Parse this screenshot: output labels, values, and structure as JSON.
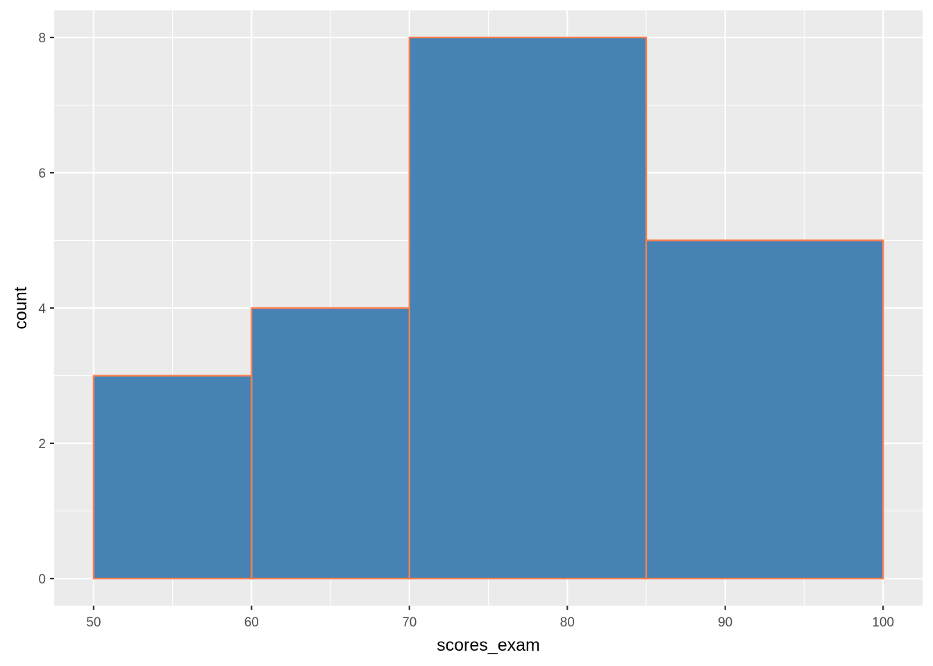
{
  "chart_data": {
    "type": "bar",
    "subtype": "histogram",
    "bins": [
      {
        "start": 50,
        "end": 60,
        "count": 3
      },
      {
        "start": 60,
        "end": 70,
        "count": 4
      },
      {
        "start": 70,
        "end": 85,
        "count": 8
      },
      {
        "start": 85,
        "end": 100,
        "count": 5
      }
    ],
    "x_ticks": [
      50,
      60,
      70,
      80,
      90,
      100
    ],
    "y_ticks": [
      0,
      2,
      4,
      6,
      8
    ],
    "xlim": [
      47.5,
      102.5
    ],
    "ylim": [
      -0.4,
      8.4
    ],
    "xlabel": "scores_exam",
    "ylabel": "count",
    "title": "",
    "grid": true,
    "legend": "none",
    "colors": {
      "fill": "#4682b4",
      "outline": "#ff7f50",
      "panel_background": "#ebebeb",
      "grid_line": "#ffffff"
    }
  }
}
